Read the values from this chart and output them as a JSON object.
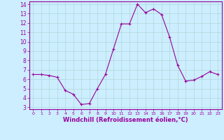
{
  "x": [
    0,
    1,
    2,
    3,
    4,
    5,
    6,
    7,
    8,
    9,
    10,
    11,
    12,
    13,
    14,
    15,
    16,
    17,
    18,
    19,
    20,
    21,
    22,
    23
  ],
  "y": [
    6.5,
    6.5,
    6.4,
    6.2,
    4.8,
    4.4,
    3.3,
    3.4,
    5.0,
    6.5,
    9.2,
    11.9,
    11.9,
    14.0,
    13.1,
    13.5,
    12.9,
    10.5,
    7.5,
    5.8,
    5.9,
    6.3,
    6.8,
    6.5
  ],
  "line_color": "#990099",
  "marker": "+",
  "marker_size": 3,
  "marker_linewidth": 0.8,
  "bg_color": "#cceeff",
  "grid_color": "#b0d8d8",
  "xlabel": "Windchill (Refroidissement éolien,°C)",
  "xlabel_color": "#990099",
  "tick_color": "#990099",
  "ylim": [
    3,
    14
  ],
  "xlim": [
    0,
    23
  ],
  "yticks": [
    3,
    4,
    5,
    6,
    7,
    8,
    9,
    10,
    11,
    12,
    13,
    14
  ],
  "xticks": [
    0,
    1,
    2,
    3,
    4,
    5,
    6,
    7,
    8,
    9,
    10,
    11,
    12,
    13,
    14,
    15,
    16,
    17,
    18,
    19,
    20,
    21,
    22,
    23
  ]
}
